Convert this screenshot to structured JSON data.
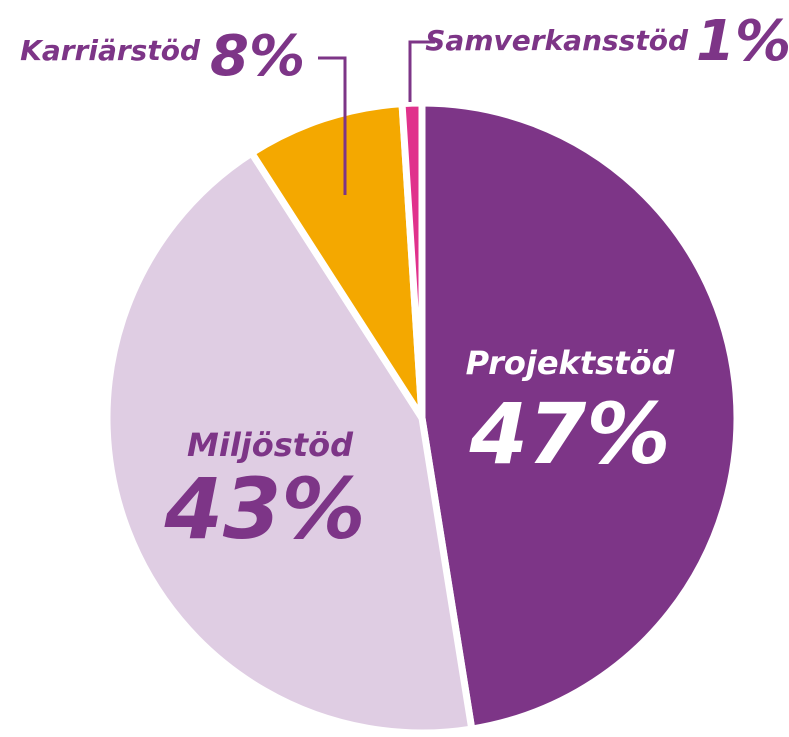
{
  "chart_data": {
    "type": "pie",
    "categories": [
      "Projektstöd",
      "Miljöstöd",
      "Karriärstöd",
      "Samverkansstöd"
    ],
    "values": [
      47,
      43,
      8,
      1
    ],
    "value_labels": [
      "47%",
      "43%",
      "8%",
      "1%"
    ],
    "colors": [
      "#7d3587",
      "#dfcde3",
      "#f4a800",
      "#e0328c"
    ]
  }
}
